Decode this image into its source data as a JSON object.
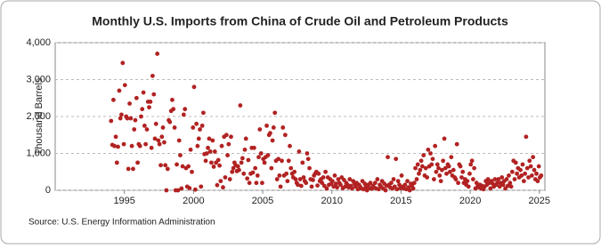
{
  "chart_data": {
    "type": "scatter",
    "title": "Monthly U.S. Imports from China of Crude Oil and Petroleum Products",
    "ylabel": "Thousand Barrels",
    "source": "Source: U.S. Energy Information Administration",
    "xlim": [
      1990,
      2025.4
    ],
    "xticks": [
      1995,
      2000,
      2005,
      2010,
      2015,
      2020,
      2025
    ],
    "ylim": [
      0,
      4000
    ],
    "yticks": [
      0,
      {
        "value": 1000,
        "label": "1,000"
      },
      {
        "value": 2000,
        "label": "2,000"
      },
      {
        "value": 3000,
        "label": "3,000"
      },
      {
        "value": 4000,
        "label": "4,000"
      }
    ],
    "grid": true,
    "series": [
      {
        "color": "#b22222",
        "x": [
          1994.04,
          1994.13,
          1994.21,
          1994.29,
          1994.38,
          1994.46,
          1994.54,
          1994.63,
          1994.71,
          1994.79,
          1994.88,
          1994.96,
          1995.04,
          1995.13,
          1995.21,
          1995.29,
          1995.38,
          1995.46,
          1995.54,
          1995.63,
          1995.71,
          1995.79,
          1995.88,
          1995.96,
          1996.04,
          1996.13,
          1996.21,
          1996.29,
          1996.38,
          1996.46,
          1996.54,
          1996.63,
          1996.71,
          1996.79,
          1996.88,
          1996.96,
          1997.04,
          1997.13,
          1997.21,
          1997.29,
          1997.38,
          1997.46,
          1997.54,
          1997.63,
          1997.71,
          1997.79,
          1997.88,
          1997.96,
          1998.04,
          1998.13,
          1998.21,
          1998.29,
          1998.38,
          1998.46,
          1998.54,
          1998.63,
          1998.71,
          1998.79,
          1998.88,
          1998.96,
          1999.04,
          1999.13,
          1999.21,
          1999.29,
          1999.38,
          1999.46,
          1999.54,
          1999.63,
          1999.71,
          1999.79,
          1999.88,
          1999.96,
          2000.04,
          2000.13,
          2000.21,
          2000.29,
          2000.38,
          2000.46,
          2000.54,
          2000.63,
          2000.71,
          2000.79,
          2000.88,
          2000.96,
          2001.04,
          2001.13,
          2001.21,
          2001.29,
          2001.38,
          2001.46,
          2001.54,
          2001.63,
          2001.71,
          2001.79,
          2001.88,
          2001.96,
          2002.04,
          2002.13,
          2002.21,
          2002.29,
          2002.38,
          2002.46,
          2002.54,
          2002.63,
          2002.71,
          2002.79,
          2002.88,
          2002.96,
          2003.04,
          2003.13,
          2003.21,
          2003.29,
          2003.38,
          2003.46,
          2003.54,
          2003.63,
          2003.71,
          2003.79,
          2003.88,
          2003.96,
          2004.04,
          2004.13,
          2004.21,
          2004.29,
          2004.38,
          2004.46,
          2004.54,
          2004.63,
          2004.71,
          2004.79,
          2004.88,
          2004.96,
          2005.04,
          2005.13,
          2005.21,
          2005.29,
          2005.38,
          2005.46,
          2005.54,
          2005.63,
          2005.71,
          2005.79,
          2005.88,
          2005.96,
          2006.04,
          2006.13,
          2006.21,
          2006.29,
          2006.38,
          2006.46,
          2006.54,
          2006.63,
          2006.71,
          2006.79,
          2006.88,
          2006.96,
          2007.04,
          2007.13,
          2007.21,
          2007.29,
          2007.38,
          2007.46,
          2007.54,
          2007.63,
          2007.71,
          2007.79,
          2007.88,
          2007.96,
          2008.04,
          2008.13,
          2008.21,
          2008.29,
          2008.38,
          2008.46,
          2008.54,
          2008.63,
          2008.71,
          2008.79,
          2008.88,
          2008.96,
          2009.04,
          2009.13,
          2009.21,
          2009.29,
          2009.38,
          2009.46,
          2009.54,
          2009.63,
          2009.71,
          2009.79,
          2009.88,
          2009.96,
          2010.04,
          2010.13,
          2010.21,
          2010.29,
          2010.38,
          2010.46,
          2010.54,
          2010.63,
          2010.71,
          2010.79,
          2010.88,
          2010.96,
          2011.04,
          2011.13,
          2011.21,
          2011.29,
          2011.38,
          2011.46,
          2011.54,
          2011.63,
          2011.71,
          2011.79,
          2011.88,
          2011.96,
          2012.04,
          2012.13,
          2012.21,
          2012.29,
          2012.38,
          2012.46,
          2012.54,
          2012.63,
          2012.71,
          2012.79,
          2012.88,
          2012.96,
          2013.04,
          2013.13,
          2013.21,
          2013.29,
          2013.38,
          2013.46,
          2013.54,
          2013.63,
          2013.71,
          2013.79,
          2013.88,
          2013.96,
          2014.04,
          2014.13,
          2014.21,
          2014.29,
          2014.38,
          2014.46,
          2014.54,
          2014.63,
          2014.71,
          2014.79,
          2014.88,
          2014.96,
          2015.04,
          2015.13,
          2015.21,
          2015.29,
          2015.38,
          2015.46,
          2015.54,
          2015.63,
          2015.71,
          2015.79,
          2015.88,
          2015.96,
          2016.04,
          2016.13,
          2016.21,
          2016.29,
          2016.38,
          2016.46,
          2016.54,
          2016.63,
          2016.71,
          2016.79,
          2016.88,
          2016.96,
          2017.04,
          2017.13,
          2017.21,
          2017.29,
          2017.38,
          2017.46,
          2017.54,
          2017.63,
          2017.71,
          2017.79,
          2017.88,
          2017.96,
          2018.04,
          2018.13,
          2018.21,
          2018.29,
          2018.38,
          2018.46,
          2018.54,
          2018.63,
          2018.71,
          2018.79,
          2018.88,
          2018.96,
          2019.04,
          2019.13,
          2019.21,
          2019.29,
          2019.38,
          2019.46,
          2019.54,
          2019.63,
          2019.71,
          2019.79,
          2019.88,
          2019.96,
          2020.04,
          2020.13,
          2020.21,
          2020.29,
          2020.38,
          2020.46,
          2020.54,
          2020.63,
          2020.71,
          2020.79,
          2020.88,
          2020.96,
          2021.04,
          2021.13,
          2021.21,
          2021.29,
          2021.38,
          2021.46,
          2021.54,
          2021.63,
          2021.71,
          2021.79,
          2021.88,
          2021.96,
          2022.04,
          2022.13,
          2022.21,
          2022.29,
          2022.38,
          2022.46,
          2022.54,
          2022.63,
          2022.71,
          2022.79,
          2022.88,
          2022.96,
          2023.04,
          2023.13,
          2023.21,
          2023.29,
          2023.38,
          2023.46,
          2023.54,
          2023.63,
          2023.71,
          2023.79,
          2023.88,
          2023.96,
          2024.04,
          2024.13,
          2024.21,
          2024.29,
          2024.38,
          2024.46,
          2024.54,
          2024.63,
          2024.71,
          2024.79,
          2024.88,
          2024.96,
          2025.04,
          2025.13
        ],
        "values": [
          1880,
          1230,
          2450,
          1200,
          1450,
          750,
          1180,
          2700,
          1950,
          2050,
          3450,
          1250,
          2850,
          2000,
          1950,
          580,
          2350,
          1950,
          1200,
          580,
          1650,
          1900,
          2500,
          750,
          1250,
          1200,
          2000,
          2200,
          2650,
          1750,
          1250,
          1650,
          2400,
          2250,
          2400,
          1150,
          3100,
          2600,
          1400,
          1800,
          3700,
          1350,
          1250,
          680,
          1450,
          1700,
          1300,
          680,
          0,
          580,
          1900,
          1850,
          2150,
          2450,
          2200,
          1700,
          0,
          700,
          0,
          1350,
          950,
          50,
          650,
          2050,
          2200,
          600,
          100,
          650,
          60,
          1100,
          500,
          1700,
          2800,
          20,
          1800,
          1200,
          1400,
          1650,
          100,
          1750,
          2100,
          980,
          800,
          1000,
          1150,
          1400,
          1050,
          750,
          1350,
          640,
          1050,
          750,
          140,
          820,
          670,
          250,
          1200,
          80,
          1450,
          350,
          1500,
          950,
          1250,
          300,
          1450,
          500,
          600,
          750,
          680,
          520,
          650,
          550,
          2300,
          750,
          870,
          450,
          1100,
          1400,
          320,
          820,
          200,
          450,
          1150,
          480,
          1150,
          600,
          200,
          400,
          900,
          1650,
          1000,
          200,
          850,
          750,
          900,
          1750,
          950,
          1500,
          1550,
          600,
          1350,
          1700,
          2100,
          800,
          300,
          850,
          400,
          100,
          800,
          1700,
          400,
          1500,
          450,
          250,
          800,
          1200,
          600,
          450,
          350,
          500,
          300,
          200,
          150,
          1050,
          300,
          120,
          750,
          350,
          250,
          200,
          1000,
          850,
          600,
          300,
          100,
          280,
          400,
          450,
          500,
          130,
          450,
          250,
          300,
          200,
          350,
          120,
          500,
          50,
          350,
          150,
          300,
          180,
          250,
          100,
          400,
          180,
          80,
          300,
          200,
          150,
          350,
          60,
          280,
          100,
          200,
          150,
          80,
          300,
          120,
          50,
          250,
          180,
          100,
          200,
          30,
          150,
          100,
          50,
          250,
          30,
          180,
          100,
          0,
          150,
          60,
          200,
          40,
          120,
          80,
          200,
          50,
          300,
          30,
          150,
          100,
          250,
          50,
          180,
          0,
          120,
          900,
          150,
          80,
          200,
          50,
          300,
          100,
          850,
          30,
          250,
          150,
          60,
          400,
          100,
          50,
          150,
          30,
          250,
          80,
          0,
          180,
          120,
          50,
          200,
          600,
          300,
          700,
          450,
          550,
          800,
          650,
          950,
          400,
          600,
          350,
          1100,
          650,
          1000,
          700,
          850,
          300,
          1200,
          500,
          700,
          600,
          400,
          250,
          550,
          800,
          1400,
          600,
          450,
          700,
          650,
          500,
          900,
          400,
          550,
          350,
          300,
          1250,
          200,
          700,
          650,
          350,
          500,
          200,
          300,
          150,
          250,
          100,
          450,
          700,
          800,
          300,
          600,
          50,
          200,
          100,
          80,
          150,
          50,
          120,
          30,
          100,
          250,
          150,
          300,
          200,
          50,
          250,
          180,
          100,
          300,
          150,
          200,
          300,
          100,
          200,
          350,
          150,
          250,
          50,
          300,
          120,
          400,
          200,
          100,
          500,
          800,
          300,
          750,
          450,
          600,
          350,
          550,
          400,
          700,
          250,
          450,
          1450,
          600,
          350,
          800,
          650,
          400,
          900,
          550,
          300,
          450,
          250,
          650,
          350,
          400
        ]
      }
    ]
  }
}
